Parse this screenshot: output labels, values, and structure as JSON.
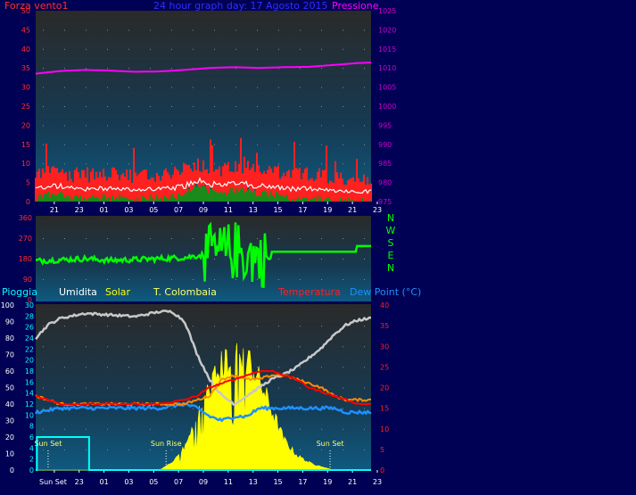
{
  "colors": {
    "background": "#000054",
    "wind": "#ff2020",
    "wind_avg": "#ffffff",
    "wind_fill": "#1a8a1a",
    "pressure": "#ff00ff",
    "direction": "#00ff00",
    "rain": "#00ffff",
    "humidity": "#c8c8c8",
    "solar": "#ffff00",
    "temperature": "#ff0000",
    "apparent": "#ff8c00",
    "dewpoint": "#1e90ff",
    "axis_text": "#ff3030",
    "sunevent": "#ffff66"
  },
  "chart_data": [
    {
      "type": "line",
      "title": "24 hour graph day: 17 Agosto 2015",
      "left_label": "Forza vento1",
      "right_label": "Pressione",
      "y_left_ticks": [
        "0",
        "5",
        "10",
        "15",
        "20",
        "25",
        "30",
        "35",
        "40",
        "45",
        "50"
      ],
      "y_left_lim": [
        0,
        50
      ],
      "y_right_ticks": [
        "975",
        "980",
        "985",
        "990",
        "995",
        "1000",
        "1005",
        "1010",
        "1015",
        "1020",
        "1025"
      ],
      "y_right_lim": [
        975,
        1025
      ],
      "x_ticks": [
        "21",
        "23",
        "01",
        "03",
        "05",
        "07",
        "09",
        "11",
        "13",
        "15",
        "17",
        "19",
        "21",
        "23"
      ],
      "x_range_hours": [
        0,
        27
      ],
      "series": [
        {
          "name": "Forza vento1",
          "axis": "left",
          "x": [
            0,
            1,
            2,
            3,
            4,
            5,
            6,
            7,
            8,
            9,
            10,
            11,
            12,
            13,
            14,
            15,
            16,
            17,
            18,
            19,
            20,
            21,
            22,
            23,
            24,
            25,
            26,
            27
          ],
          "values": [
            5,
            6,
            6,
            5,
            5,
            5,
            5,
            5,
            4,
            5,
            5,
            5,
            6,
            8,
            7,
            6,
            7,
            7,
            6,
            6,
            5,
            5,
            5,
            5,
            4,
            4,
            4,
            4
          ]
        },
        {
          "name": "Pressione",
          "axis": "right",
          "x": [
            0,
            2,
            4,
            6,
            8,
            10,
            12,
            14,
            16,
            18,
            20,
            22,
            24,
            26,
            27
          ],
          "values": [
            1008.5,
            1009.2,
            1009.5,
            1009.3,
            1009.0,
            1009.1,
            1009.5,
            1010.0,
            1010.2,
            1010.0,
            1010.2,
            1010.3,
            1010.8,
            1011.3,
            1011.4
          ]
        }
      ]
    },
    {
      "type": "line",
      "y_ticks": [
        "0",
        "90",
        "180",
        "270",
        "360"
      ],
      "y_lim": [
        0,
        360
      ],
      "compass_labels": [
        "N",
        "W",
        "S",
        "E",
        "N"
      ],
      "series": [
        {
          "name": "direction",
          "x": [
            0,
            2,
            4,
            6,
            8,
            10,
            12,
            14,
            16,
            18,
            20,
            22,
            24,
            26,
            27
          ],
          "values": [
            170,
            175,
            180,
            172,
            176,
            180,
            185,
            200,
            210,
            180,
            190,
            210,
            210,
            210,
            235
          ]
        }
      ]
    },
    {
      "type": "line",
      "legend": [
        "Pioggia",
        "Umidita",
        "Solar",
        "T. Colombaia",
        "Temperatura",
        "Dew Point (°C)"
      ],
      "y_pioggia_ticks": [
        "0",
        "10",
        "20",
        "30",
        "40",
        "50",
        "60",
        "70",
        "80",
        "90",
        "100"
      ],
      "y_umidita_ticks": [
        "0",
        "2",
        "4",
        "6",
        "8",
        "10",
        "12",
        "14",
        "16",
        "18",
        "20",
        "22",
        "24",
        "26",
        "28",
        "30"
      ],
      "y_temp_ticks": [
        "0",
        "5",
        "10",
        "15",
        "20",
        "25",
        "30",
        "35",
        "40"
      ],
      "y_temp_lim": [
        0,
        40
      ],
      "x_ticks": [
        "Sun Set",
        "23",
        "01",
        "03",
        "05",
        "07",
        "09",
        "11",
        "13",
        "15",
        "17",
        "19",
        "21",
        "23"
      ],
      "sun_events": [
        {
          "label": "Sun Set",
          "hour": 1.0
        },
        {
          "label": "Sun Rise",
          "hour": 10.5
        },
        {
          "label": "Sun Set",
          "hour": 23.7
        }
      ],
      "series": [
        {
          "name": "Umidita",
          "scale": "percent",
          "x": [
            0,
            1,
            2,
            4,
            6,
            8,
            10,
            11,
            12,
            13,
            14,
            15,
            16,
            17,
            18,
            19,
            20,
            21,
            22,
            23,
            24,
            25,
            26,
            27
          ],
          "values": [
            80,
            88,
            92,
            95,
            94,
            93,
            96,
            96,
            90,
            70,
            55,
            45,
            40,
            45,
            50,
            55,
            58,
            62,
            68,
            74,
            82,
            88,
            91,
            92
          ]
        },
        {
          "name": "Solar",
          "scale": "percent",
          "x": [
            0,
            10,
            11,
            12,
            13,
            14,
            15,
            16,
            17,
            18,
            19,
            20,
            21,
            22,
            23,
            24,
            27
          ],
          "values": [
            0,
            0,
            5,
            15,
            35,
            55,
            70,
            80,
            75,
            60,
            40,
            20,
            10,
            5,
            2,
            0,
            0
          ]
        },
        {
          "name": "Pioggia",
          "scale": "mm",
          "x": [
            0,
            0.1,
            4.2,
            4.3,
            27
          ],
          "values": [
            0,
            6,
            6,
            0,
            0
          ]
        },
        {
          "name": "T. Colombaia",
          "scale": "temp",
          "x": [
            0,
            2,
            4,
            6,
            8,
            10,
            12,
            14,
            15,
            16,
            17,
            18,
            19,
            20,
            21,
            22,
            23,
            24,
            25,
            26,
            27
          ],
          "values": [
            18,
            16,
            16,
            16,
            16,
            16,
            16,
            18,
            22,
            23,
            22,
            22,
            23,
            23,
            22,
            21,
            20,
            18,
            17,
            17,
            17
          ]
        },
        {
          "name": "Temperatura",
          "scale": "temp",
          "x": [
            0,
            2,
            4,
            6,
            8,
            10,
            12,
            13,
            14,
            15,
            16,
            17,
            18,
            19,
            20,
            21,
            22,
            23,
            24,
            25,
            26,
            27
          ],
          "values": [
            18,
            16,
            16,
            16,
            16,
            16,
            17,
            18,
            20,
            21,
            22,
            23,
            24,
            24,
            23,
            22,
            20,
            19,
            18,
            17,
            16,
            16
          ]
        },
        {
          "name": "Dew Point (°C)",
          "scale": "temp",
          "x": [
            0,
            2,
            4,
            6,
            8,
            10,
            12,
            13,
            14,
            15,
            16,
            17,
            18,
            19,
            20,
            21,
            22,
            23,
            24,
            25,
            26,
            27
          ],
          "values": [
            14,
            15,
            15,
            15,
            15,
            15,
            16,
            15,
            13,
            12,
            13,
            13,
            15,
            15,
            15,
            15,
            15,
            15,
            15,
            14,
            14,
            14
          ]
        }
      ]
    }
  ]
}
